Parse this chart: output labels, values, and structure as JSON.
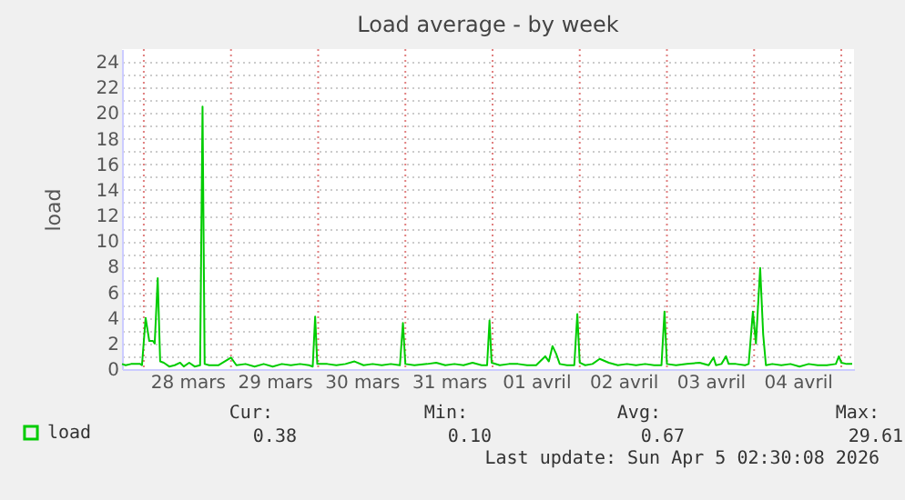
{
  "chart_data": {
    "type": "line",
    "title": "Load average - by week",
    "ylabel": "load",
    "x": [
      "2026-03-27T18:00",
      "2026-03-27T19:00",
      "2026-03-27T20:30",
      "2026-03-27T23:00",
      "2026-03-27T23:30",
      "2026-03-28T00:30",
      "2026-03-28T01:30",
      "2026-03-28T02:30",
      "2026-03-28T03:00",
      "2026-03-28T03:50",
      "2026-03-28T04:30",
      "2026-03-28T05:30",
      "2026-03-28T07:00",
      "2026-03-28T08:30",
      "2026-03-28T10:00",
      "2026-03-28T11:00",
      "2026-03-28T12:30",
      "2026-03-28T14:00",
      "2026-03-28T15:30",
      "2026-03-28T16:10",
      "2026-03-28T16:45",
      "2026-03-28T18:00",
      "2026-03-28T19:30",
      "2026-03-28T20:30",
      "2026-03-29T00:00",
      "2026-03-29T01:30",
      "2026-03-29T04:00",
      "2026-03-29T06:30",
      "2026-03-29T09:00",
      "2026-03-29T11:30",
      "2026-03-29T14:00",
      "2026-03-29T16:30",
      "2026-03-29T19:00",
      "2026-03-29T21:30",
      "2026-03-29T22:30",
      "2026-03-29T23:10",
      "2026-03-29T23:45",
      "2026-03-30T02:30",
      "2026-03-30T05:00",
      "2026-03-30T07:30",
      "2026-03-30T10:00",
      "2026-03-30T12:30",
      "2026-03-30T15:00",
      "2026-03-30T17:30",
      "2026-03-30T20:00",
      "2026-03-30T22:30",
      "2026-03-30T23:20",
      "2026-03-31T00:00",
      "2026-03-31T02:30",
      "2026-03-31T06:00",
      "2026-03-31T08:30",
      "2026-03-31T11:00",
      "2026-03-31T13:30",
      "2026-03-31T16:00",
      "2026-03-31T18:30",
      "2026-03-31T21:00",
      "2026-03-31T22:30",
      "2026-03-31T23:10",
      "2026-03-31T23:45",
      "2026-04-01T02:00",
      "2026-04-01T04:30",
      "2026-04-01T07:00",
      "2026-04-01T09:30",
      "2026-04-01T12:00",
      "2026-04-01T14:30",
      "2026-04-01T15:30",
      "2026-04-01T16:30",
      "2026-04-01T17:30",
      "2026-04-01T18:30",
      "2026-04-01T20:30",
      "2026-04-01T22:30",
      "2026-04-01T23:20",
      "2026-04-02T00:00",
      "2026-04-02T01:30",
      "2026-04-02T03:30",
      "2026-04-02T05:30",
      "2026-04-02T08:00",
      "2026-04-02T10:30",
      "2026-04-02T13:00",
      "2026-04-02T15:30",
      "2026-04-02T18:00",
      "2026-04-02T20:30",
      "2026-04-02T22:30",
      "2026-04-02T23:20",
      "2026-04-03T00:00",
      "2026-04-03T02:30",
      "2026-04-03T05:30",
      "2026-04-03T09:00",
      "2026-04-03T11:30",
      "2026-04-03T12:50",
      "2026-04-03T13:30",
      "2026-04-03T15:00",
      "2026-04-03T16:15",
      "2026-04-03T17:00",
      "2026-04-03T19:00",
      "2026-04-03T21:30",
      "2026-04-03T22:30",
      "2026-04-03T23:40",
      "2026-04-04T00:30",
      "2026-04-04T01:40",
      "2026-04-04T02:30",
      "2026-04-04T03:15",
      "2026-04-04T05:00",
      "2026-04-04T07:30",
      "2026-04-04T10:00",
      "2026-04-04T12:30",
      "2026-04-04T15:00",
      "2026-04-04T17:30",
      "2026-04-04T20:00",
      "2026-04-04T22:30",
      "2026-04-04T23:20",
      "2026-04-05T00:00",
      "2026-04-05T01:30",
      "2026-04-05T03:00"
    ],
    "series": [
      {
        "name": "load",
        "color": "#00cc00",
        "values": [
          0.4,
          0.3,
          0.4,
          0.4,
          0.3,
          4.0,
          2.2,
          2.2,
          2.0,
          7.1,
          0.6,
          0.5,
          0.2,
          0.3,
          0.5,
          0.2,
          0.5,
          0.2,
          0.3,
          20.5,
          0.4,
          0.3,
          0.3,
          0.3,
          0.9,
          0.3,
          0.4,
          0.2,
          0.4,
          0.2,
          0.4,
          0.3,
          0.4,
          0.3,
          0.2,
          4.1,
          0.4,
          0.4,
          0.3,
          0.4,
          0.6,
          0.3,
          0.4,
          0.3,
          0.4,
          0.3,
          3.6,
          0.4,
          0.3,
          0.4,
          0.5,
          0.3,
          0.4,
          0.3,
          0.5,
          0.3,
          0.3,
          3.8,
          0.5,
          0.3,
          0.4,
          0.4,
          0.3,
          0.3,
          1.0,
          0.6,
          1.8,
          1.2,
          0.4,
          0.3,
          0.3,
          4.3,
          0.5,
          0.3,
          0.4,
          0.8,
          0.5,
          0.3,
          0.4,
          0.3,
          0.4,
          0.3,
          0.3,
          4.5,
          0.4,
          0.3,
          0.4,
          0.5,
          0.3,
          0.9,
          0.3,
          0.4,
          1.0,
          0.4,
          0.4,
          0.3,
          0.4,
          4.5,
          2.0,
          7.9,
          2.7,
          0.3,
          0.4,
          0.3,
          0.4,
          0.2,
          0.4,
          0.3,
          0.3,
          0.4,
          1.0,
          0.5,
          0.4,
          0.4
        ]
      }
    ],
    "xlim": [
      "2026-03-27T18:00",
      "2026-04-05T03:30"
    ],
    "xticks": [
      {
        "value": "2026-03-28T00:00",
        "label": null
      },
      {
        "value": "2026-03-28T12:00",
        "label": "28 mars"
      },
      {
        "value": "2026-03-29T00:00",
        "label": null
      },
      {
        "value": "2026-03-29T12:00",
        "label": "29 mars"
      },
      {
        "value": "2026-03-30T00:00",
        "label": null
      },
      {
        "value": "2026-03-30T12:00",
        "label": "30 mars"
      },
      {
        "value": "2026-03-31T00:00",
        "label": null
      },
      {
        "value": "2026-03-31T12:00",
        "label": "31 mars"
      },
      {
        "value": "2026-04-01T00:00",
        "label": null
      },
      {
        "value": "2026-04-01T12:00",
        "label": "01 avril"
      },
      {
        "value": "2026-04-02T00:00",
        "label": null
      },
      {
        "value": "2026-04-02T12:00",
        "label": "02 avril"
      },
      {
        "value": "2026-04-03T00:00",
        "label": null
      },
      {
        "value": "2026-04-03T12:00",
        "label": "03 avril"
      },
      {
        "value": "2026-04-04T00:00",
        "label": null
      },
      {
        "value": "2026-04-04T12:00",
        "label": "04 avril"
      },
      {
        "value": "2026-04-05T00:00",
        "label": null
      }
    ],
    "ylim": [
      0,
      25
    ],
    "yticks": [
      0,
      {
        "value": 1,
        "label": null
      },
      2,
      {
        "value": 3,
        "label": null
      },
      4,
      {
        "value": 5,
        "label": null
      },
      6,
      {
        "value": 7,
        "label": null
      },
      8,
      {
        "value": 9,
        "label": null
      },
      10,
      {
        "value": 11,
        "label": null
      },
      12,
      {
        "value": 13,
        "label": null
      },
      14,
      {
        "value": 15,
        "label": null
      },
      16,
      {
        "value": 17,
        "label": null
      },
      18,
      {
        "value": 19,
        "label": null
      },
      20,
      {
        "value": 21,
        "label": null
      },
      22,
      {
        "value": 23,
        "label": null
      },
      24
    ],
    "grid": true,
    "legend": "bottom left",
    "marker": "none",
    "line_style": "solid",
    "annotations": [
      "Cur:",
      "Min:",
      "Avg:",
      "Max:",
      "0.38",
      "0.10",
      "0.67",
      "29.61",
      "Last update: Sun Apr  5 02:30:08 2026"
    ]
  }
}
